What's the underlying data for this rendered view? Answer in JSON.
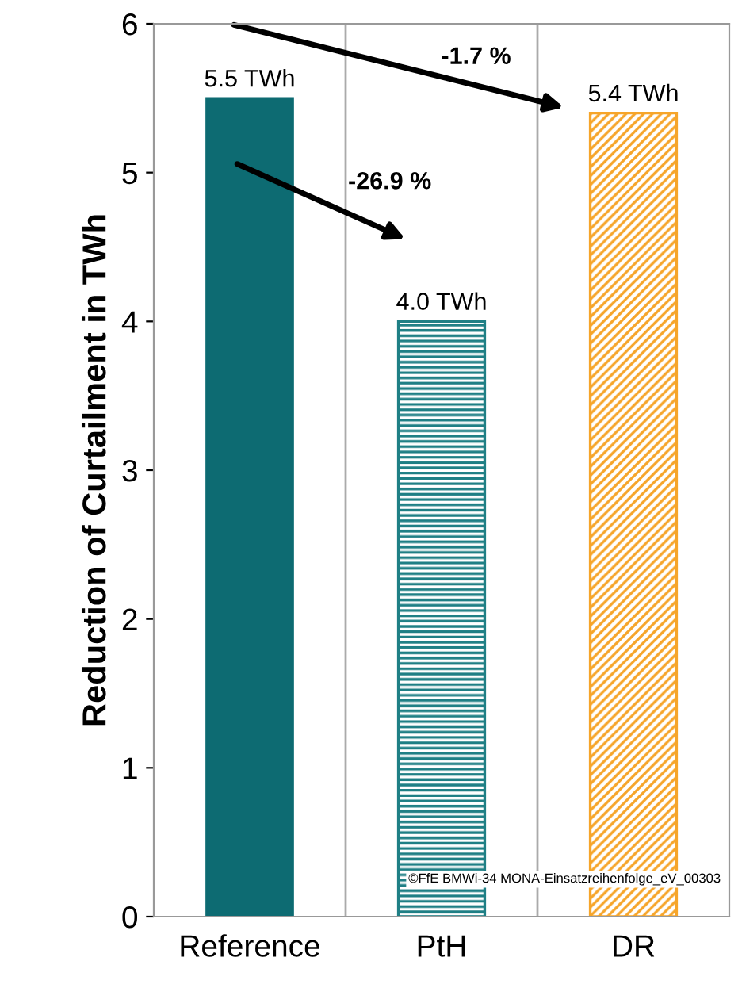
{
  "chart_data": {
    "type": "bar",
    "ylabel": "Reduction of Curtailment in TWh",
    "categories": [
      "Reference",
      "PtH",
      "DR"
    ],
    "values": [
      5.5,
      4.0,
      5.4
    ],
    "colors": [
      "#0d6b72",
      "#1f7f85",
      "#f6a52a"
    ],
    "value_labels": [
      "5.5 TWh",
      "4.0 TWh",
      "5.4 TWh"
    ],
    "ylim": [
      0,
      6
    ],
    "yticks": [
      0,
      1,
      2,
      3,
      4,
      5,
      6
    ],
    "grid": "x",
    "annotations": [
      "-1.7 %",
      "-26.9 %",
      "©FfE BMWi-34 MONA-Einsatzreihenfolge_eV_00303"
    ]
  }
}
